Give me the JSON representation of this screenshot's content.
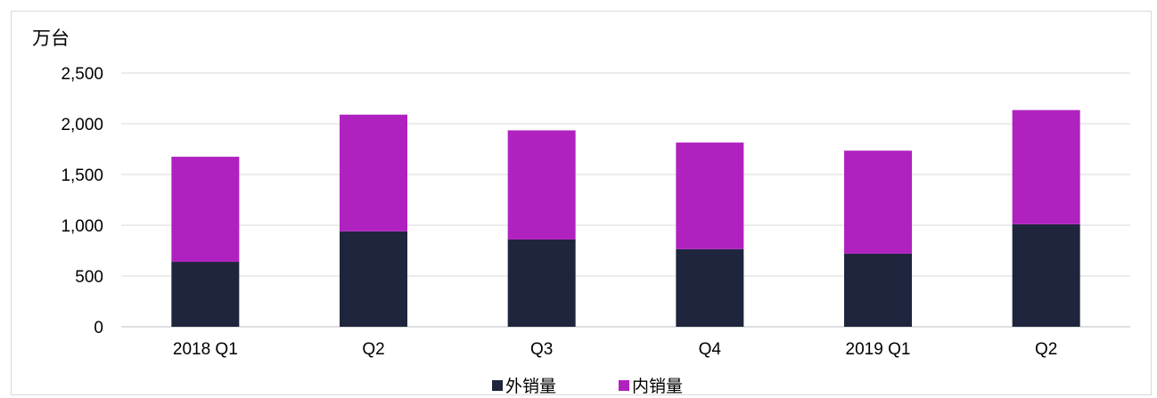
{
  "chart_data": {
    "type": "bar",
    "stacked": true,
    "unit_label": "万台",
    "categories": [
      "2018 Q1",
      "Q2",
      "Q3",
      "Q4",
      "2019 Q1",
      "Q2"
    ],
    "series": [
      {
        "name": "外销量",
        "color": "#1f253d",
        "values": [
          640,
          940,
          860,
          765,
          720,
          1010
        ]
      },
      {
        "name": "内销量",
        "color": "#b022c0",
        "values": [
          1035,
          1150,
          1075,
          1050,
          1015,
          1125
        ]
      }
    ],
    "ylim": [
      0,
      2500
    ],
    "yticks": [
      0,
      500,
      1000,
      1500,
      2000,
      2500
    ],
    "ytick_labels": [
      "0",
      "500",
      "1,000",
      "1,500",
      "2,000",
      "2,500"
    ],
    "grid": true,
    "legend_position": "bottom"
  }
}
